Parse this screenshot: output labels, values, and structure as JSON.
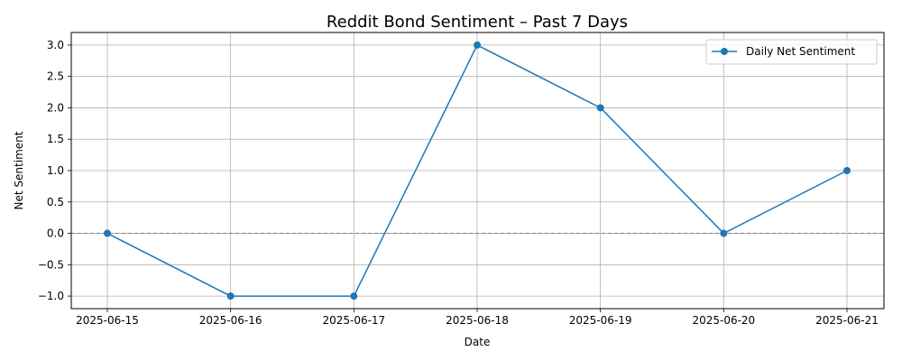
{
  "chart_data": {
    "type": "line",
    "title": "Reddit Bond Sentiment – Past 7 Days",
    "xlabel": "Date",
    "ylabel": "Net Sentiment",
    "x": [
      "2025-06-15",
      "2025-06-16",
      "2025-06-17",
      "2025-06-18",
      "2025-06-19",
      "2025-06-20",
      "2025-06-21"
    ],
    "series": [
      {
        "name": "Daily Net Sentiment",
        "values": [
          0,
          -1,
          -1,
          3,
          2,
          0,
          1
        ],
        "color": "#1f77b4",
        "marker": "circle"
      }
    ],
    "yticks": [
      "−1.0",
      "−0.5",
      "0.0",
      "0.5",
      "1.0",
      "1.5",
      "2.0",
      "2.5",
      "3.0"
    ],
    "ytick_values": [
      -1.0,
      -0.5,
      0.0,
      0.5,
      1.0,
      1.5,
      2.0,
      2.5,
      3.0
    ],
    "ylim": [
      -1.2,
      3.2
    ],
    "grid": true,
    "reference_line": {
      "y": 0,
      "style": "dashed",
      "color": "#808080"
    },
    "legend_position": "top-right"
  }
}
